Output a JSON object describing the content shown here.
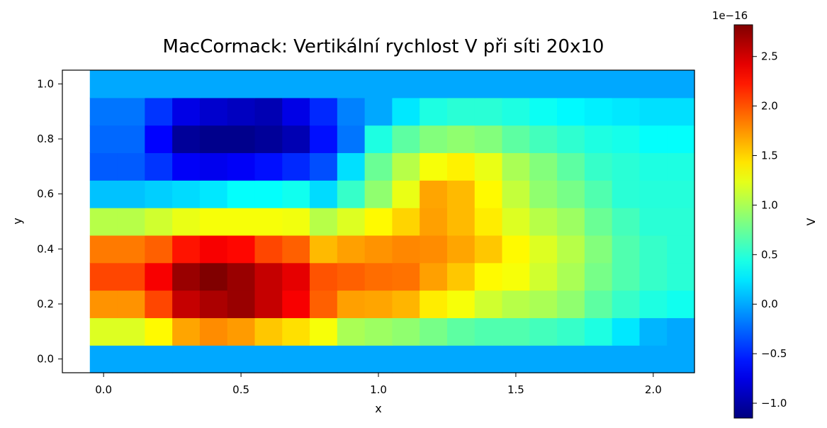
{
  "chart_data": {
    "type": "heatmap",
    "title": "MacCormack: Vertikální rychlost V při síti 20x10",
    "xlabel": "x",
    "ylabel": "y",
    "colorbar_label": "V",
    "colorbar_exponent": "1e−16",
    "colormap": "jet",
    "vmin": -1.15,
    "vmax": 2.82,
    "xlim": [
      -0.15,
      2.15
    ],
    "ylim": [
      -0.05,
      1.05
    ],
    "x_centers": [
      0.0,
      0.1,
      0.2,
      0.3,
      0.4,
      0.5,
      0.6,
      0.7,
      0.8,
      0.9,
      1.0,
      1.1,
      1.2,
      1.3,
      1.4,
      1.5,
      1.6,
      1.7,
      1.8,
      1.9,
      2.0,
      2.1
    ],
    "y_centers": [
      0.0,
      0.1,
      0.2,
      0.3,
      0.4,
      0.5,
      0.6,
      0.7,
      0.8,
      0.9,
      1.0
    ],
    "x_ticks": [
      {
        "value": 0.0,
        "label": "0.0"
      },
      {
        "value": 0.5,
        "label": "0.5"
      },
      {
        "value": 1.0,
        "label": "1.0"
      },
      {
        "value": 1.5,
        "label": "1.5"
      },
      {
        "value": 2.0,
        "label": "2.0"
      }
    ],
    "y_ticks": [
      {
        "value": 0.0,
        "label": "0.0"
      },
      {
        "value": 0.2,
        "label": "0.2"
      },
      {
        "value": 0.4,
        "label": "0.4"
      },
      {
        "value": 0.6,
        "label": "0.6"
      },
      {
        "value": 0.8,
        "label": "0.8"
      },
      {
        "value": 1.0,
        "label": "1.0"
      }
    ],
    "colorbar_ticks": [
      {
        "value": -1.0,
        "label": "−1.0"
      },
      {
        "value": -0.5,
        "label": "−0.5"
      },
      {
        "value": 0.0,
        "label": "0.0"
      },
      {
        "value": 0.5,
        "label": "0.5"
      },
      {
        "value": 1.0,
        "label": "1.0"
      },
      {
        "value": 1.5,
        "label": "1.5"
      },
      {
        "value": 2.0,
        "label": "2.0"
      },
      {
        "value": 2.5,
        "label": "2.5"
      }
    ],
    "values_rows_bottom_to_top": [
      [
        0.0,
        0.0,
        0.0,
        0.0,
        0.0,
        0.0,
        0.0,
        0.0,
        0.0,
        0.0,
        0.0,
        0.0,
        0.0,
        0.0,
        0.0,
        0.0,
        0.0,
        0.0,
        0.0,
        0.0,
        0.0,
        0.0
      ],
      [
        1.2,
        1.2,
        1.35,
        1.68,
        1.78,
        1.72,
        1.55,
        1.45,
        1.3,
        1.0,
        0.95,
        0.9,
        0.8,
        0.7,
        0.65,
        0.65,
        0.6,
        0.55,
        0.45,
        0.25,
        0.05,
        0.0
      ],
      [
        1.75,
        1.75,
        2.05,
        2.55,
        2.65,
        2.72,
        2.55,
        2.35,
        1.95,
        1.7,
        1.68,
        1.62,
        1.4,
        1.3,
        1.15,
        1.05,
        1.0,
        0.9,
        0.7,
        0.55,
        0.45,
        0.4
      ],
      [
        2.05,
        2.05,
        2.35,
        2.72,
        2.82,
        2.72,
        2.55,
        2.42,
        2.0,
        1.95,
        1.9,
        1.88,
        1.7,
        1.55,
        1.35,
        1.3,
        1.15,
        1.0,
        0.8,
        0.65,
        0.55,
        0.5
      ],
      [
        1.85,
        1.85,
        1.95,
        2.25,
        2.35,
        2.3,
        2.05,
        1.95,
        1.6,
        1.7,
        1.75,
        1.8,
        1.78,
        1.68,
        1.55,
        1.35,
        1.2,
        1.05,
        0.85,
        0.65,
        0.55,
        0.5
      ],
      [
        1.05,
        1.05,
        1.15,
        1.25,
        1.3,
        1.3,
        1.3,
        1.28,
        1.05,
        1.2,
        1.35,
        1.5,
        1.7,
        1.6,
        1.4,
        1.2,
        1.05,
        0.95,
        0.75,
        0.6,
        0.5,
        0.5
      ],
      [
        0.1,
        0.1,
        0.15,
        0.2,
        0.25,
        0.35,
        0.35,
        0.4,
        0.2,
        0.55,
        0.9,
        1.25,
        1.68,
        1.6,
        1.35,
        1.1,
        0.9,
        0.8,
        0.65,
        0.5,
        0.48,
        0.48
      ],
      [
        -0.3,
        -0.3,
        -0.45,
        -0.68,
        -0.72,
        -0.68,
        -0.6,
        -0.5,
        -0.35,
        0.22,
        0.75,
        1.05,
        1.3,
        1.38,
        1.25,
        1.0,
        0.85,
        0.7,
        0.55,
        0.5,
        0.45,
        0.45
      ],
      [
        -0.25,
        -0.25,
        -0.65,
        -1.05,
        -1.1,
        -1.1,
        -1.05,
        -0.95,
        -0.6,
        -0.2,
        0.45,
        0.7,
        0.85,
        0.9,
        0.85,
        0.7,
        0.6,
        0.52,
        0.45,
        0.42,
        0.35,
        0.35
      ],
      [
        -0.2,
        -0.2,
        -0.45,
        -0.75,
        -0.85,
        -0.9,
        -0.95,
        -0.75,
        -0.5,
        -0.15,
        0.0,
        0.25,
        0.45,
        0.5,
        0.5,
        0.45,
        0.38,
        0.32,
        0.28,
        0.25,
        0.22,
        0.22
      ],
      [
        0.0,
        0.0,
        0.0,
        0.0,
        0.0,
        0.0,
        0.0,
        0.0,
        0.0,
        0.0,
        0.0,
        0.0,
        0.0,
        0.0,
        0.0,
        0.0,
        0.0,
        0.0,
        0.0,
        0.0,
        0.0,
        0.0
      ]
    ]
  }
}
